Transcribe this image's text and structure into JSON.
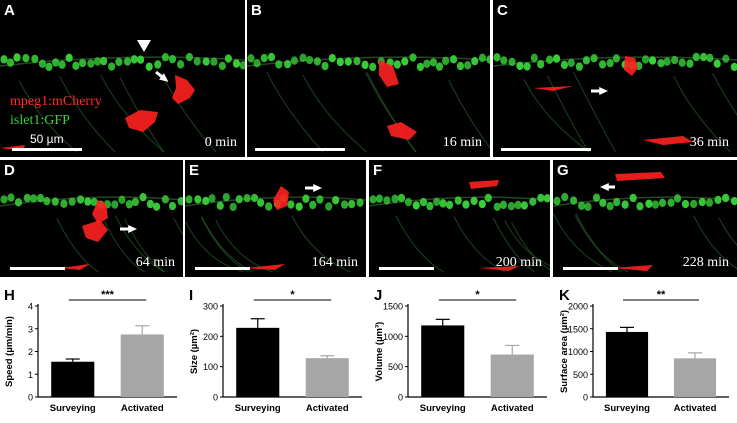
{
  "figure": {
    "panels": [
      {
        "letter": "A",
        "time": "0 min",
        "legend": [
          "mpeg1:mCherry",
          "islet1:GFP"
        ],
        "scale": "50 µm"
      },
      {
        "letter": "B",
        "time": "16 min"
      },
      {
        "letter": "C",
        "time": "36 min"
      },
      {
        "letter": "D",
        "time": "64 min"
      },
      {
        "letter": "E",
        "time": "164 min"
      },
      {
        "letter": "F",
        "time": "200 min"
      },
      {
        "letter": "G",
        "time": "228 min"
      }
    ],
    "colors": {
      "mcherry": "#ff2020",
      "gfp": "#3ad13a",
      "bar_surveying": "#000000",
      "bar_activated": "#a6a6a6"
    }
  },
  "chart_data": [
    {
      "panel": "H",
      "type": "bar",
      "categories": [
        "Surveying",
        "Activated"
      ],
      "values": [
        1.55,
        2.75
      ],
      "errors": [
        0.12,
        0.38
      ],
      "ylabel": "Speed (µm/min)",
      "ylim": [
        0,
        4
      ],
      "yticks": [
        0,
        1,
        2,
        3,
        4
      ],
      "significance": "***"
    },
    {
      "panel": "I",
      "type": "bar",
      "categories": [
        "Surveying",
        "Activated"
      ],
      "values": [
        228,
        128
      ],
      "errors": [
        30,
        8
      ],
      "ylabel": "Size (µm²)",
      "ylim": [
        0,
        300
      ],
      "yticks": [
        0,
        100,
        200,
        300
      ],
      "significance": "*"
    },
    {
      "panel": "J",
      "type": "bar",
      "categories": [
        "Surveying",
        "Activated"
      ],
      "values": [
        1180,
        700
      ],
      "errors": [
        100,
        150
      ],
      "ylabel": "Volume (µm³)",
      "ylim": [
        0,
        1500
      ],
      "yticks": [
        0,
        500,
        1000,
        1500
      ],
      "significance": "*"
    },
    {
      "panel": "K",
      "type": "bar",
      "categories": [
        "Surveying",
        "Activated"
      ],
      "values": [
        1430,
        850
      ],
      "errors": [
        100,
        120
      ],
      "ylabel": "Surface area (µm²)",
      "ylim": [
        0,
        2000
      ],
      "yticks": [
        0,
        500,
        1000,
        1500,
        2000
      ],
      "significance": "**"
    }
  ]
}
